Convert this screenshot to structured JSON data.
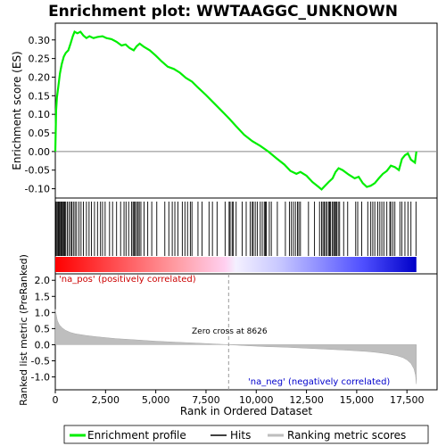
{
  "chart_data": {
    "type": "line",
    "title": "Enrichment plot: WWTAAGGC_UNKNOWN",
    "top_panel": {
      "ylabel": "Enrichment score (ES)",
      "ylim": [
        -0.125,
        0.345
      ],
      "yticks": [
        "-0.10",
        "-0.05",
        "0.00",
        "0.05",
        "0.10",
        "0.15",
        "0.20",
        "0.25",
        "0.30"
      ],
      "ytick_values": [
        -0.1,
        -0.05,
        0.0,
        0.05,
        0.1,
        0.15,
        0.2,
        0.25,
        0.3
      ],
      "series": [
        {
          "name": "Enrichment profile",
          "color": "#00ff00",
          "points": [
            [
              0,
              0.0
            ],
            [
              40,
              0.11
            ],
            [
              80,
              0.145
            ],
            [
              150,
              0.175
            ],
            [
              230,
              0.21
            ],
            [
              320,
              0.235
            ],
            [
              420,
              0.255
            ],
            [
              520,
              0.265
            ],
            [
              650,
              0.272
            ],
            [
              760,
              0.29
            ],
            [
              870,
              0.31
            ],
            [
              960,
              0.322
            ],
            [
              1100,
              0.318
            ],
            [
              1250,
              0.322
            ],
            [
              1400,
              0.312
            ],
            [
              1550,
              0.305
            ],
            [
              1700,
              0.31
            ],
            [
              1900,
              0.305
            ],
            [
              2100,
              0.308
            ],
            [
              2350,
              0.31
            ],
            [
              2550,
              0.305
            ],
            [
              2800,
              0.302
            ],
            [
              3050,
              0.295
            ],
            [
              3300,
              0.285
            ],
            [
              3500,
              0.288
            ],
            [
              3700,
              0.278
            ],
            [
              3900,
              0.272
            ],
            [
              4050,
              0.283
            ],
            [
              4200,
              0.29
            ],
            [
              4400,
              0.282
            ],
            [
              4700,
              0.272
            ],
            [
              5000,
              0.258
            ],
            [
              5300,
              0.242
            ],
            [
              5600,
              0.228
            ],
            [
              5900,
              0.222
            ],
            [
              6200,
              0.212
            ],
            [
              6500,
              0.198
            ],
            [
              6800,
              0.188
            ],
            [
              7100,
              0.172
            ],
            [
              7500,
              0.152
            ],
            [
              7900,
              0.13
            ],
            [
              8300,
              0.108
            ],
            [
              8626,
              0.09
            ],
            [
              9000,
              0.068
            ],
            [
              9400,
              0.045
            ],
            [
              9800,
              0.028
            ],
            [
              10200,
              0.015
            ],
            [
              10600,
              0.0
            ],
            [
              11000,
              -0.018
            ],
            [
              11400,
              -0.035
            ],
            [
              11700,
              -0.052
            ],
            [
              12000,
              -0.06
            ],
            [
              12200,
              -0.055
            ],
            [
              12500,
              -0.065
            ],
            [
              12800,
              -0.082
            ],
            [
              13100,
              -0.095
            ],
            [
              13250,
              -0.102
            ],
            [
              13400,
              -0.093
            ],
            [
              13600,
              -0.082
            ],
            [
              13800,
              -0.072
            ],
            [
              13950,
              -0.055
            ],
            [
              14100,
              -0.045
            ],
            [
              14300,
              -0.05
            ],
            [
              14600,
              -0.062
            ],
            [
              14900,
              -0.072
            ],
            [
              15100,
              -0.068
            ],
            [
              15300,
              -0.085
            ],
            [
              15500,
              -0.095
            ],
            [
              15700,
              -0.092
            ],
            [
              15900,
              -0.085
            ],
            [
              16100,
              -0.072
            ],
            [
              16300,
              -0.06
            ],
            [
              16500,
              -0.052
            ],
            [
              16700,
              -0.038
            ],
            [
              16900,
              -0.042
            ],
            [
              17100,
              -0.05
            ],
            [
              17250,
              -0.02
            ],
            [
              17400,
              -0.01
            ],
            [
              17550,
              -0.005
            ],
            [
              17700,
              -0.022
            ],
            [
              17900,
              -0.03
            ],
            [
              17970,
              0.0
            ]
          ]
        }
      ]
    },
    "hits_panel": {
      "series_name": "Hits",
      "hit_ranks": [
        30,
        80,
        130,
        170,
        210,
        260,
        300,
        340,
        390,
        430,
        470,
        520,
        600,
        680,
        760,
        820,
        900,
        980,
        1060,
        1180,
        1280,
        1400,
        1550,
        1680,
        1800,
        1950,
        2100,
        2250,
        2350,
        2480,
        2700,
        2850,
        3050,
        3250,
        3420,
        3520,
        3650,
        3800,
        3870,
        3920,
        3980,
        4050,
        4120,
        4180,
        4260,
        4420,
        4600,
        4800,
        5050,
        5450,
        5650,
        5820,
        5950,
        6100,
        6320,
        6450,
        6580,
        6720,
        6800,
        7100,
        7300,
        7650,
        7820,
        8050,
        8450,
        8650,
        8700,
        8800,
        8850,
        9000,
        9300,
        9500,
        9700,
        9800,
        9850,
        9950,
        10050,
        10200,
        10300,
        10400,
        10450,
        10500,
        10650,
        10750,
        11050,
        11450,
        11650,
        11750,
        11850,
        11950,
        12050,
        12120,
        12200,
        12600,
        12900,
        13150,
        13250,
        13320,
        13380,
        13450,
        13520,
        13600,
        13650,
        13700,
        13780,
        13850,
        13900,
        13950,
        14000,
        14080,
        14150,
        14350,
        14550,
        14950,
        15050,
        15250,
        15550,
        15700,
        15800,
        15900,
        16050,
        16150,
        16250,
        16350,
        16500,
        16650,
        16700,
        16800,
        16900,
        17150,
        17250,
        17400,
        17550,
        17700,
        17950
      ],
      "color_bar": {
        "positive_color": "#ff0000",
        "negative_color": "#0000ff"
      }
    },
    "bottom_panel": {
      "ylabel": "Ranked list metric (PreRanked)",
      "ylim": [
        -1.4,
        2.2
      ],
      "yticks": [
        "-1.0",
        "-0.5",
        "0.0",
        "0.5",
        "1.0",
        "1.5",
        "2.0"
      ],
      "ytick_values": [
        -1.0,
        -0.5,
        0.0,
        0.5,
        1.0,
        1.5,
        2.0
      ],
      "series_name": "Ranking metric scores",
      "series_color": "#bebebe",
      "metric_curve": [
        [
          0,
          1.1
        ],
        [
          40,
          0.95
        ],
        [
          100,
          0.75
        ],
        [
          200,
          0.62
        ],
        [
          350,
          0.52
        ],
        [
          500,
          0.45
        ],
        [
          750,
          0.38
        ],
        [
          1000,
          0.34
        ],
        [
          1500,
          0.29
        ],
        [
          2000,
          0.25
        ],
        [
          2500,
          0.22
        ],
        [
          3000,
          0.19
        ],
        [
          4000,
          0.15
        ],
        [
          5000,
          0.11
        ],
        [
          6000,
          0.08
        ],
        [
          7000,
          0.05
        ],
        [
          8000,
          0.02
        ],
        [
          8626,
          0.0
        ],
        [
          9500,
          -0.03
        ],
        [
          10500,
          -0.06
        ],
        [
          11500,
          -0.08
        ],
        [
          12500,
          -0.11
        ],
        [
          13500,
          -0.14
        ],
        [
          14500,
          -0.17
        ],
        [
          15500,
          -0.21
        ],
        [
          16000,
          -0.24
        ],
        [
          16500,
          -0.28
        ],
        [
          17000,
          -0.34
        ],
        [
          17300,
          -0.4
        ],
        [
          17500,
          -0.47
        ],
        [
          17700,
          -0.58
        ],
        [
          17850,
          -0.75
        ],
        [
          17930,
          -0.95
        ],
        [
          17970,
          -1.22
        ]
      ],
      "label_pos": "'na_pos' (positively correlated)",
      "label_neg": "'na_neg' (negatively correlated)",
      "zero_cross_label": "Zero cross at 8626",
      "zero_cross": 8626
    },
    "xlabel": "Rank in Ordered Dataset",
    "xlim": [
      0,
      19000
    ],
    "xticks": [
      "0",
      "2,500",
      "5,000",
      "7,500",
      "10,000",
      "12,500",
      "15,000",
      "17,500"
    ],
    "xtick_values": [
      0,
      2500,
      5000,
      7500,
      10000,
      12500,
      15000,
      17500
    ],
    "n_genes": 17970,
    "legend": {
      "placement": "bottom",
      "items": [
        "Enrichment profile",
        "Hits",
        "Ranking metric scores"
      ]
    }
  }
}
